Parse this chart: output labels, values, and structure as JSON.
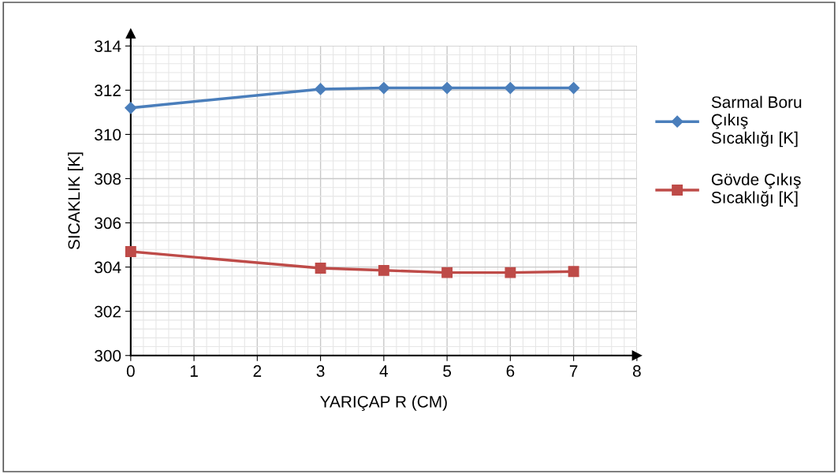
{
  "chart_data": {
    "type": "line",
    "xlabel": "YARIÇAP R (CM)",
    "ylabel": "SICAKLIK [K]",
    "x": [
      0,
      3,
      4,
      5,
      6,
      7
    ],
    "series": [
      {
        "name": "Sarmal Boru Çıkış Sıcaklığı [K]",
        "color": "#4a7ebb",
        "marker": "diamond",
        "values": [
          311.2,
          312.05,
          312.1,
          312.1,
          312.1,
          312.1
        ]
      },
      {
        "name": "Gövde Çıkış Sıcaklığı [K]",
        "color": "#be4b48",
        "marker": "square",
        "values": [
          304.7,
          303.95,
          303.85,
          303.75,
          303.75,
          303.8
        ]
      }
    ],
    "xlim": [
      0,
      8
    ],
    "xticks": [
      0,
      1,
      2,
      3,
      4,
      5,
      6,
      7,
      8
    ],
    "ylim": [
      300,
      314
    ],
    "yticks": [
      300,
      302,
      304,
      306,
      308,
      310,
      312,
      314
    ],
    "grid": true,
    "legend": "right",
    "line_style": "solid"
  }
}
